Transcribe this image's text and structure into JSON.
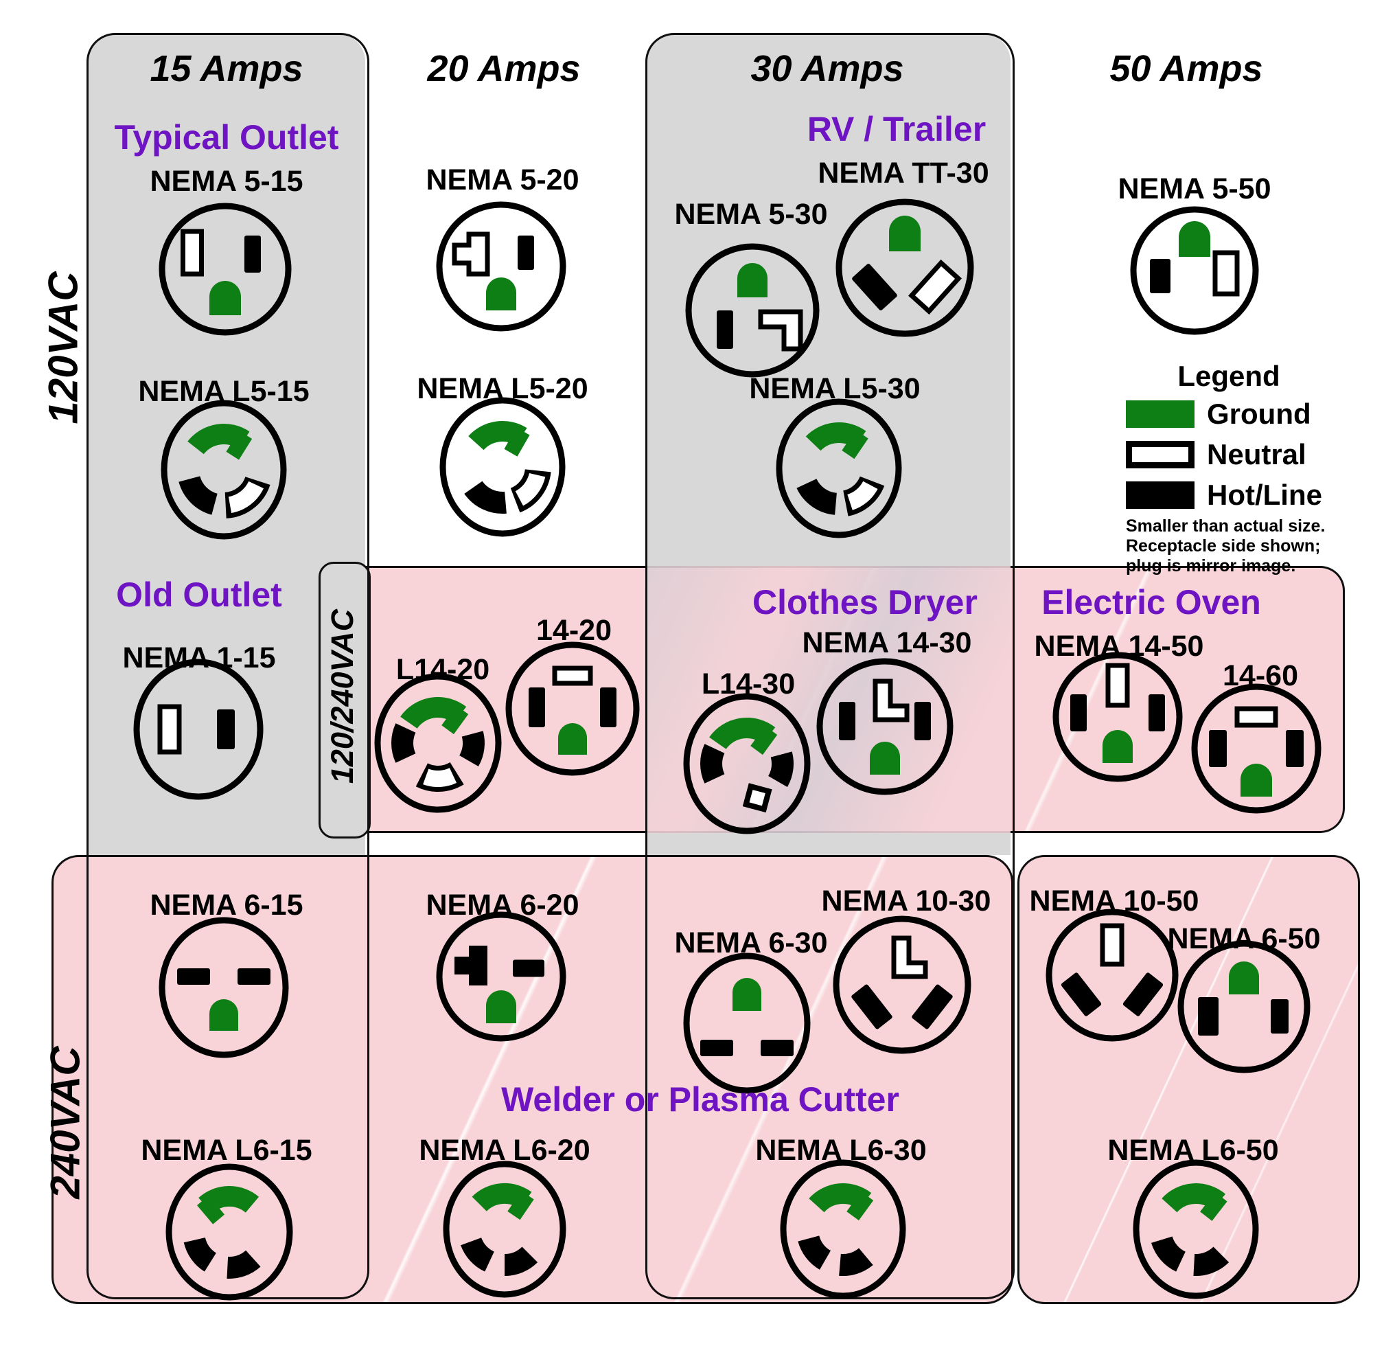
{
  "title_note": "NEMA receptacle chart",
  "headers": [
    {
      "label": "15 Amps"
    },
    {
      "label": "20 Amps"
    },
    {
      "label": "30 Amps"
    },
    {
      "label": "50 Amps"
    }
  ],
  "voltage_labels": [
    {
      "label": "120VAC"
    },
    {
      "label": "120/240VAC"
    },
    {
      "label": "240VAC"
    }
  ],
  "categories": {
    "typical_outlet": "Typical Outlet",
    "rv_trailer": "RV / Trailer",
    "old_outlet": "Old Outlet",
    "clothes_dryer": "Clothes Dryer",
    "electric_oven": "Electric Oven",
    "welder": "Welder or Plasma Cutter"
  },
  "legend": {
    "title": "Legend",
    "items": [
      {
        "label": "Ground",
        "color": "#0e7f14"
      },
      {
        "label": "Neutral",
        "color": "#ffffff"
      },
      {
        "label": "Hot/Line",
        "color": "#000000"
      }
    ],
    "note_lines": [
      "Smaller than actual size.",
      "Receptacle side shown;",
      "plug is mirror image."
    ]
  },
  "colors": {
    "ground": "#0e7f14",
    "neutral": "#ffffff",
    "hot": "#000000",
    "panel_gray": "#d8d8d8",
    "panel_pink": "#f8d3d7",
    "accent_purple": "#6e14c2"
  },
  "outlets": [
    {
      "id": "5-15",
      "label": "NEMA 5-15"
    },
    {
      "id": "5-20",
      "label": "NEMA 5-20"
    },
    {
      "id": "5-30",
      "label": "NEMA 5-30"
    },
    {
      "id": "TT-30",
      "label": "NEMA TT-30"
    },
    {
      "id": "5-50",
      "label": "NEMA 5-50"
    },
    {
      "id": "L5-15",
      "label": "NEMA L5-15"
    },
    {
      "id": "L5-20",
      "label": "NEMA L5-20"
    },
    {
      "id": "L5-30",
      "label": "NEMA L5-30"
    },
    {
      "id": "1-15",
      "label": "NEMA 1-15"
    },
    {
      "id": "L14-20",
      "label": "L14-20"
    },
    {
      "id": "14-20",
      "label": "14-20"
    },
    {
      "id": "L14-30",
      "label": "L14-30"
    },
    {
      "id": "14-30",
      "label": "NEMA 14-30"
    },
    {
      "id": "14-50",
      "label": "NEMA 14-50"
    },
    {
      "id": "14-60",
      "label": "14-60"
    },
    {
      "id": "6-15",
      "label": "NEMA 6-15"
    },
    {
      "id": "6-20",
      "label": "NEMA 6-20"
    },
    {
      "id": "6-30",
      "label": "NEMA 6-30"
    },
    {
      "id": "10-30",
      "label": "NEMA 10-30"
    },
    {
      "id": "10-50",
      "label": "NEMA 10-50"
    },
    {
      "id": "6-50",
      "label": "NEMA 6-50"
    },
    {
      "id": "L6-15",
      "label": "NEMA L6-15"
    },
    {
      "id": "L6-20",
      "label": "NEMA L6-20"
    },
    {
      "id": "L6-30",
      "label": "NEMA L6-30"
    },
    {
      "id": "L6-50",
      "label": "NEMA L6-50"
    }
  ]
}
